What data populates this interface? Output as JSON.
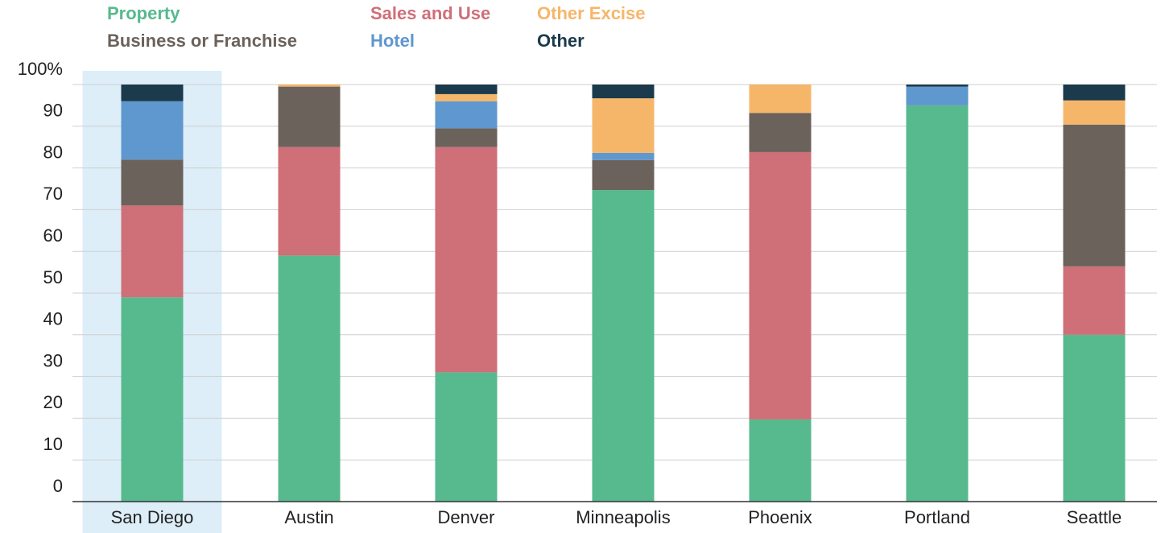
{
  "chart_data": {
    "type": "stacked_bar",
    "categories": [
      "San Diego",
      "Austin",
      "Denver",
      "Minneapolis",
      "Phoenix",
      "Portland",
      "Seattle"
    ],
    "series": [
      {
        "name": "Property",
        "color": "#57b98e",
        "values": [
          49,
          59,
          31,
          74.7,
          19.7,
          95,
          40
        ]
      },
      {
        "name": "Sales and Use",
        "color": "#cf6f77",
        "values": [
          22,
          26,
          54,
          0,
          64.1,
          0,
          16.4
        ]
      },
      {
        "name": "Business or Franchise",
        "color": "#6b625b",
        "values": [
          11,
          14.5,
          4.5,
          7.2,
          9.4,
          0,
          34
        ]
      },
      {
        "name": "Hotel",
        "color": "#5f97cf",
        "values": [
          14,
          0,
          6.5,
          1.7,
          0,
          4.5,
          0
        ]
      },
      {
        "name": "Other Excise",
        "color": "#f6b66a",
        "values": [
          0,
          0.5,
          1.7,
          13.1,
          6.8,
          0,
          5.8
        ]
      },
      {
        "name": "Other",
        "color": "#1b3a4b",
        "values": [
          4,
          0,
          2.3,
          3.3,
          0,
          0.5,
          3.8
        ]
      }
    ],
    "ylim": [
      0,
      100
    ],
    "yticks": [
      0,
      10,
      20,
      30,
      40,
      50,
      60,
      70,
      80,
      90,
      {
        "value": 100,
        "label": "100%"
      }
    ],
    "grid": true,
    "highlight": "San Diego"
  }
}
